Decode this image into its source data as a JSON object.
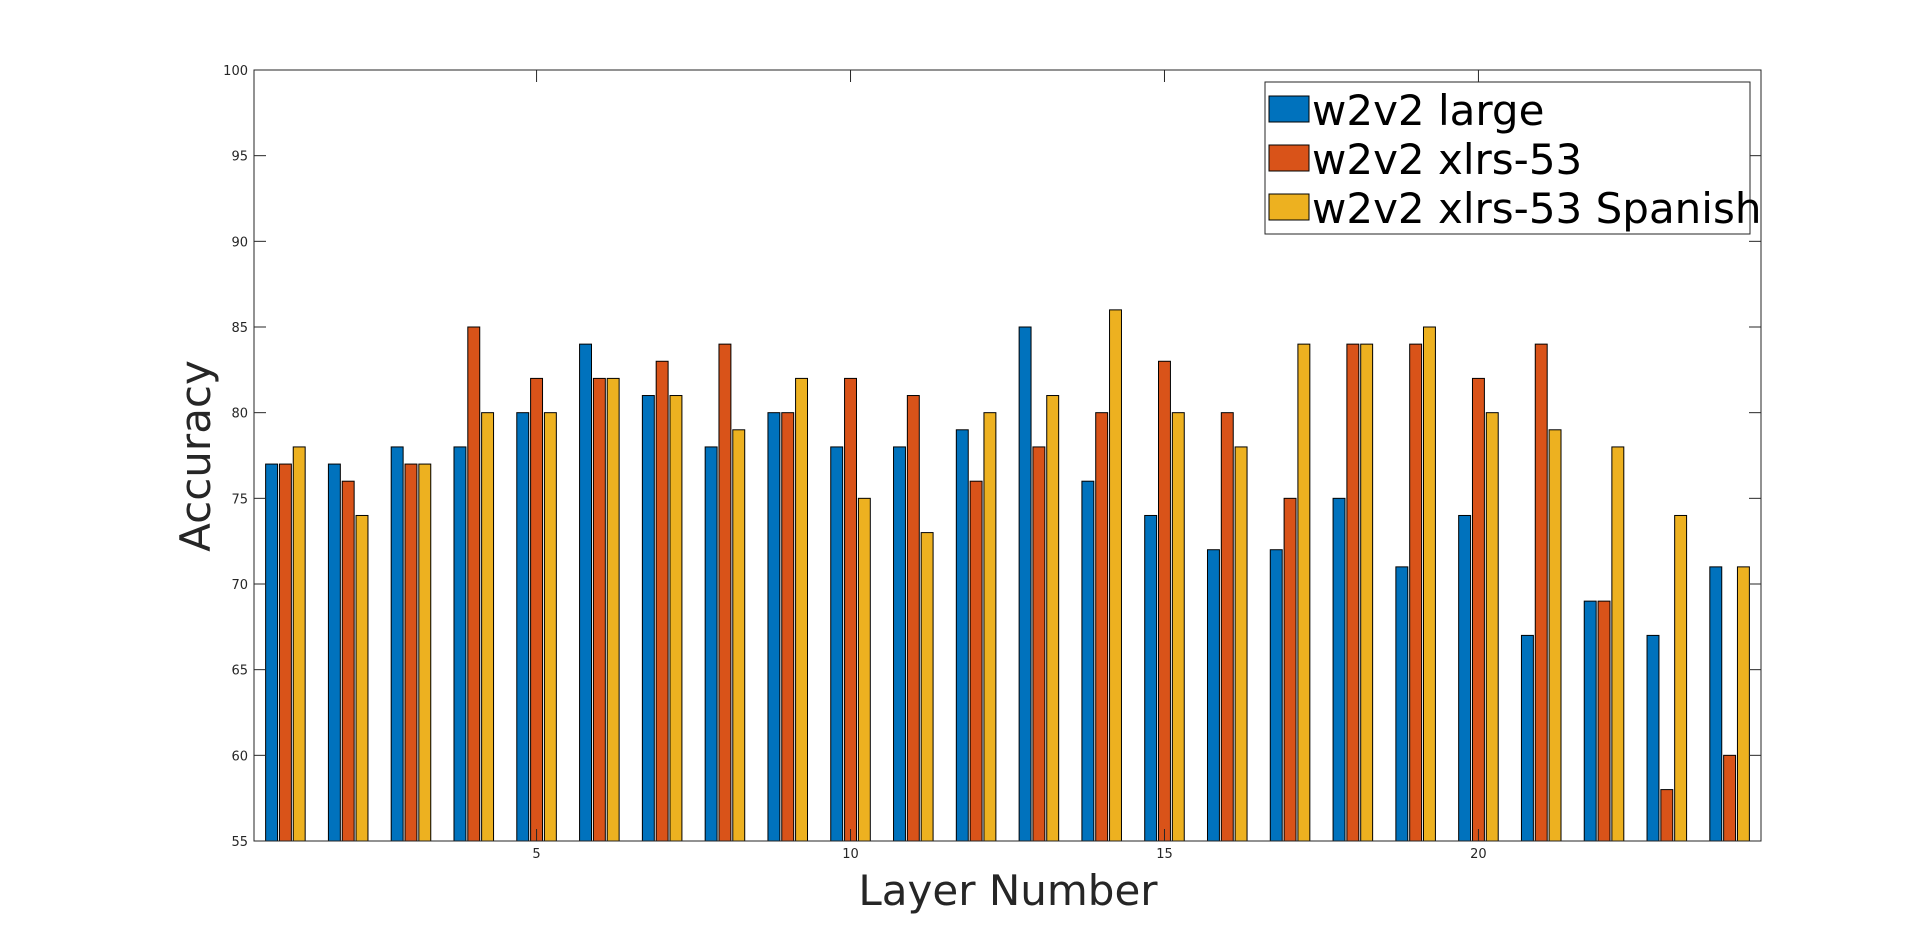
{
  "chart_data": {
    "type": "bar",
    "title": "",
    "xlabel": "Layer Number",
    "ylabel": "Accuracy",
    "categories": [
      1,
      2,
      3,
      4,
      5,
      6,
      7,
      8,
      9,
      10,
      11,
      12,
      13,
      14,
      15,
      16,
      17,
      18,
      19,
      20,
      21,
      22,
      23,
      24
    ],
    "xticks": [
      5,
      10,
      15,
      20
    ],
    "xlim": [
      0.5,
      24.5
    ],
    "ylim": [
      55,
      100
    ],
    "yticks": [
      55,
      60,
      65,
      70,
      75,
      80,
      85,
      90,
      95,
      100
    ],
    "grid": false,
    "legend_position": "top-right",
    "series": [
      {
        "name": "w2v2 large",
        "color": "#0072BD",
        "values": [
          77,
          77,
          78,
          78,
          80,
          84,
          81,
          78,
          80,
          78,
          78,
          79,
          85,
          76,
          74,
          72,
          72,
          75,
          71,
          74,
          67,
          69,
          67,
          71
        ]
      },
      {
        "name": "w2v2 xlrs-53",
        "color": "#D95319",
        "values": [
          77,
          76,
          77,
          85,
          82,
          82,
          83,
          84,
          80,
          82,
          81,
          76,
          78,
          80,
          83,
          80,
          75,
          84,
          84,
          82,
          84,
          69,
          58,
          60
        ]
      },
      {
        "name": "w2v2 xlrs-53 Spanish",
        "color": "#EDB120",
        "values": [
          78,
          74,
          77,
          80,
          80,
          82,
          81,
          79,
          82,
          75,
          73,
          80,
          81,
          86,
          80,
          78,
          84,
          84,
          85,
          80,
          79,
          78,
          74,
          71
        ]
      }
    ]
  }
}
